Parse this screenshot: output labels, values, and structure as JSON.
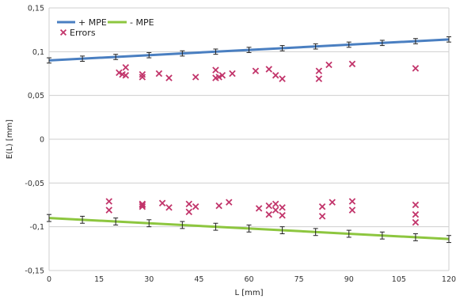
{
  "chart_data": {
    "type": "scatter",
    "xlabel": "L [mm]",
    "ylabel": "E(L) [mm]",
    "xlim": [
      0,
      120
    ],
    "ylim": [
      -0.15,
      0.15
    ],
    "x_ticks": [
      0,
      15,
      30,
      45,
      60,
      75,
      90,
      105,
      120
    ],
    "y_ticks": [
      0.15,
      0.1,
      0.05,
      0,
      -0.05,
      -0.1,
      -0.15
    ],
    "x_tick_labels": [
      "0",
      "15",
      "30",
      "45",
      "60",
      "75",
      "90",
      "105",
      "120"
    ],
    "y_tick_labels": [
      "0,15",
      "0,1",
      "0,05",
      "0",
      "-0,05",
      "-0,1",
      "-0,15"
    ],
    "grid": "horizontal",
    "legend_position": "top-left",
    "series": [
      {
        "name": "+ MPE",
        "kind": "line",
        "color": "#4a7fc1",
        "x": [
          0,
          120
        ],
        "y": [
          0.09,
          0.114
        ],
        "errorbar_x": [
          0,
          10,
          20,
          30,
          40,
          50,
          60,
          70,
          80,
          90,
          100,
          110,
          120
        ],
        "errorbar_halfwidth": 0.003
      },
      {
        "name": "- MPE",
        "kind": "line",
        "color": "#8dc63f",
        "x": [
          0,
          120
        ],
        "y": [
          -0.09,
          -0.114
        ],
        "errorbar_x": [
          0,
          10,
          20,
          30,
          40,
          50,
          60,
          70,
          80,
          90,
          100,
          110,
          120
        ],
        "errorbar_halfwidth": 0.004
      },
      {
        "name": "Errors",
        "kind": "markers",
        "marker": "x",
        "color": "#c2356b",
        "points": [
          [
            21,
            0.076
          ],
          [
            22,
            0.074
          ],
          [
            23,
            0.082
          ],
          [
            23,
            0.073
          ],
          [
            28,
            0.074
          ],
          [
            28,
            0.071
          ],
          [
            33,
            0.075
          ],
          [
            36,
            0.07
          ],
          [
            44,
            0.071
          ],
          [
            50,
            0.079
          ],
          [
            50,
            0.07
          ],
          [
            51,
            0.071
          ],
          [
            52,
            0.073
          ],
          [
            55,
            0.075
          ],
          [
            62,
            0.078
          ],
          [
            66,
            0.08
          ],
          [
            68,
            0.073
          ],
          [
            70,
            0.069
          ],
          [
            81,
            0.078
          ],
          [
            81,
            0.069
          ],
          [
            84,
            0.085
          ],
          [
            91,
            0.086
          ],
          [
            110,
            0.081
          ],
          [
            18,
            -0.071
          ],
          [
            18,
            -0.081
          ],
          [
            28,
            -0.074
          ],
          [
            28,
            -0.075
          ],
          [
            28,
            -0.077
          ],
          [
            34,
            -0.073
          ],
          [
            36,
            -0.078
          ],
          [
            42,
            -0.074
          ],
          [
            42,
            -0.083
          ],
          [
            44,
            -0.077
          ],
          [
            51,
            -0.076
          ],
          [
            54,
            -0.072
          ],
          [
            63,
            -0.079
          ],
          [
            66,
            -0.076
          ],
          [
            66,
            -0.086
          ],
          [
            68,
            -0.074
          ],
          [
            68,
            -0.081
          ],
          [
            70,
            -0.078
          ],
          [
            70,
            -0.087
          ],
          [
            82,
            -0.077
          ],
          [
            82,
            -0.088
          ],
          [
            85,
            -0.072
          ],
          [
            91,
            -0.071
          ],
          [
            91,
            -0.081
          ],
          [
            110,
            -0.075
          ],
          [
            110,
            -0.086
          ],
          [
            110,
            -0.095
          ]
        ]
      }
    ]
  }
}
